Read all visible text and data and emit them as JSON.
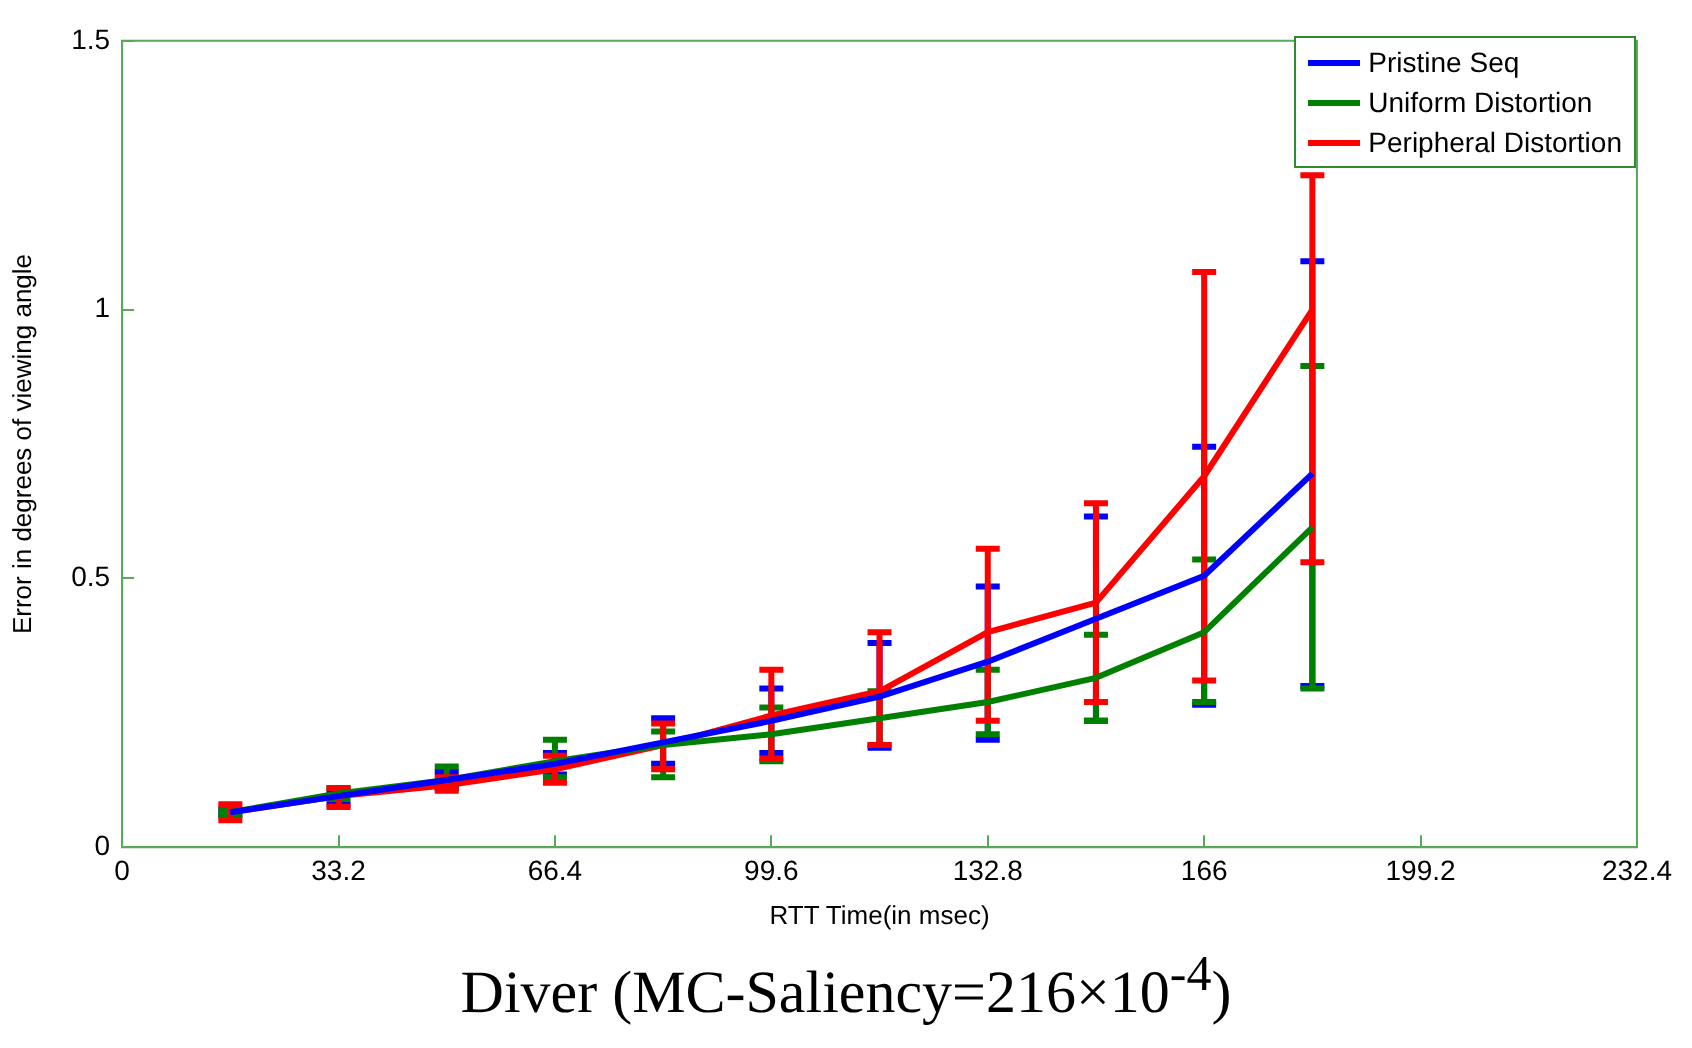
{
  "chart_data": {
    "type": "line",
    "title": "Diver (MC-Saliency=216×10$^{-4}$)",
    "xlabel": "RTT Time(in msec)",
    "ylabel": "Error in degrees of viewing angle",
    "x": [
      16.6,
      33.2,
      49.8,
      66.4,
      83,
      99.6,
      116.2,
      132.8,
      149.4,
      166,
      182.6
    ],
    "xlim": [
      0,
      232.4
    ],
    "xticks": [
      0,
      33.2,
      66.4,
      99.6,
      132.8,
      166,
      199.2,
      232.4
    ],
    "ylim": [
      0,
      1.5
    ],
    "yticks": [
      0,
      0.5,
      1,
      1.5
    ],
    "grid": false,
    "legend": "top right",
    "marker": "none",
    "line_style": "solid",
    "series": [
      {
        "name": "Pristine Seq",
        "color": "#0000ff",
        "values": [
          0.065,
          0.095,
          0.125,
          0.155,
          0.195,
          0.235,
          0.28,
          0.345,
          0.425,
          0.505,
          0.695
        ],
        "errors": [
          [
            0.06,
            0.07
          ],
          [
            0.08,
            0.105
          ],
          [
            0.11,
            0.14
          ],
          [
            0.135,
            0.175
          ],
          [
            0.155,
            0.24
          ],
          [
            0.175,
            0.295
          ],
          [
            0.185,
            0.38
          ],
          [
            0.2,
            0.485
          ],
          [
            0.235,
            0.615
          ],
          [
            0.265,
            0.745
          ],
          [
            0.3,
            1.09
          ]
        ]
      },
      {
        "name": "Uniform Distortion",
        "color": "#008000",
        "values": [
          0.065,
          0.1,
          0.125,
          0.16,
          0.19,
          0.21,
          0.24,
          0.27,
          0.315,
          0.4,
          0.595
        ],
        "errors": [
          [
            0.06,
            0.07
          ],
          [
            0.09,
            0.11
          ],
          [
            0.11,
            0.15
          ],
          [
            0.13,
            0.2
          ],
          [
            0.13,
            0.215
          ],
          [
            0.16,
            0.26
          ],
          [
            0.19,
            0.29
          ],
          [
            0.21,
            0.33
          ],
          [
            0.235,
            0.395
          ],
          [
            0.27,
            0.535
          ],
          [
            0.295,
            0.895
          ]
        ]
      },
      {
        "name": "Peripheral Distortion",
        "color": "#ff0000",
        "values": [
          0.065,
          0.095,
          0.115,
          0.145,
          0.19,
          0.245,
          0.29,
          0.4,
          0.455,
          0.69,
          1.0
        ],
        "errors": [
          [
            0.05,
            0.08
          ],
          [
            0.075,
            0.11
          ],
          [
            0.105,
            0.13
          ],
          [
            0.12,
            0.17
          ],
          [
            0.145,
            0.23
          ],
          [
            0.165,
            0.33
          ],
          [
            0.19,
            0.4
          ],
          [
            0.235,
            0.555
          ],
          [
            0.27,
            0.64
          ],
          [
            0.31,
            1.07
          ],
          [
            0.53,
            1.25
          ]
        ]
      }
    ]
  }
}
